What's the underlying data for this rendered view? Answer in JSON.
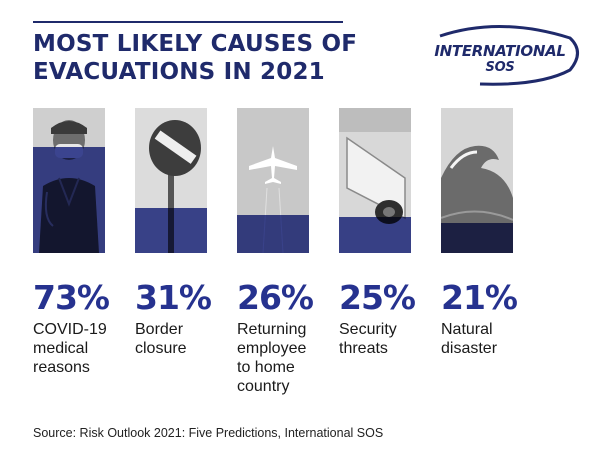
{
  "title": "MOST LIKELY CAUSES OF EVACUATIONS IN 2021",
  "logo": {
    "line1": "INTERNATIONAL",
    "line2": "SOS"
  },
  "colors": {
    "brand": "#1f2a6b",
    "fill": "#26328f",
    "photo_bg": "#d4d4d4"
  },
  "chart_data": {
    "type": "bar",
    "title": "MOST LIKELY CAUSES OF EVACUATIONS IN 2021",
    "categories": [
      "COVID-19 medical reasons",
      "Border closure",
      "Returning employee to home country",
      "Security threats",
      "Natural disaster"
    ],
    "values": [
      73,
      31,
      26,
      25,
      21
    ],
    "unit": "%",
    "ylim": [
      0,
      100
    ],
    "items": [
      {
        "value": 73,
        "pct_label": "73%",
        "label": "COVID-19\nmedical\nreasons",
        "icon": "masked-doctor-photo"
      },
      {
        "value": 31,
        "pct_label": "31%",
        "label": "Border\nclosure",
        "icon": "no-entry-sign-photo"
      },
      {
        "value": 26,
        "pct_label": "26%",
        "label": "Returning\nemployee\nto home\ncountry",
        "icon": "airplane-photo"
      },
      {
        "value": 25,
        "pct_label": "25%",
        "label": "Security\nthreats",
        "icon": "security-camera-photo"
      },
      {
        "value": 21,
        "pct_label": "21%",
        "label": "Natural\ndisaster",
        "icon": "wave-photo"
      }
    ]
  },
  "source": "Source: Risk Outlook 2021: Five Predictions, International SOS"
}
